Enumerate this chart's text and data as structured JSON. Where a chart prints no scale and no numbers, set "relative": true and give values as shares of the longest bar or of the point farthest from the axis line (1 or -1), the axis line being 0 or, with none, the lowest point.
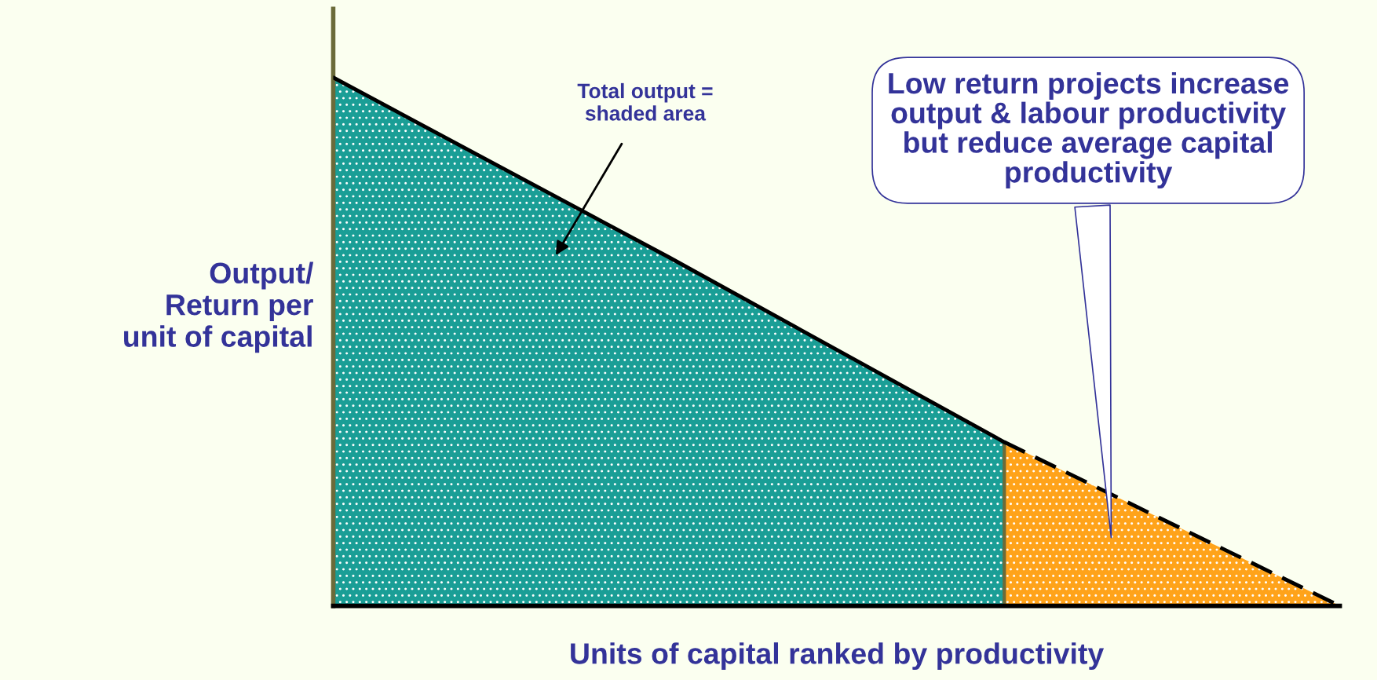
{
  "chart_data": {
    "type": "area",
    "relative": true,
    "xlabel": "Units of capital ranked by productivity",
    "ylabel": "Output/\nReturn per\nunit of capital",
    "categories": [
      null,
      null,
      null,
      null
    ],
    "series": [
      {
        "color": "#1a9e96",
        "line_style": "solid",
        "values": [
          1,
          0.66,
          0.31,
          null
        ]
      },
      {
        "color": "#ffa31a",
        "line_style": "dashed",
        "values": [
          null,
          null,
          0.31,
          0
        ]
      }
    ],
    "annotations": [
      "Total output =\nshaded area",
      "Low return projects increase\noutput & labour productivity\nbut reduce average capital\nproductivity"
    ],
    "grid": false,
    "legend": false
  }
}
